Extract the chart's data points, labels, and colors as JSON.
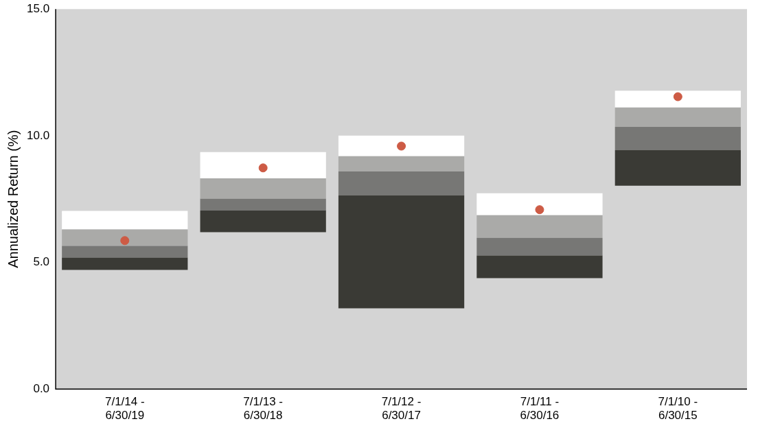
{
  "chart_data": {
    "type": "bar",
    "ylabel": "Annualized Return (%)",
    "categories": [
      "7/1/14 - 6/30/19",
      "7/1/13 - 6/30/18",
      "7/1/12 - 6/30/17",
      "7/1/11 - 6/30/16",
      "7/1/10 - 6/30/15"
    ],
    "stacked": true,
    "series": [
      {
        "color": "#3a3a35",
        "base": [
          4.7,
          6.19,
          3.19,
          4.38,
          8.03
        ],
        "values": [
          0.49,
          0.86,
          4.46,
          0.89,
          1.4
        ]
      },
      {
        "color": "#777775",
        "values": [
          0.46,
          0.46,
          0.94,
          0.7,
          0.92
        ]
      },
      {
        "color": "#aaaaa8",
        "values": [
          0.65,
          0.81,
          0.6,
          0.89,
          0.76
        ]
      },
      {
        "color": "#ffffff",
        "values": [
          0.73,
          1.03,
          0.81,
          0.87,
          0.67
        ]
      },
      {
        "type": "scatter",
        "color": "#cd5b45",
        "x": [
          "7/1/14 - 6/30/19",
          "7/1/13 - 6/30/18",
          "7/1/12 - 6/30/17",
          "7/1/11 - 6/30/16",
          "7/1/10 - 6/30/15"
        ],
        "values": [
          5.86,
          8.73,
          9.59,
          7.08,
          11.54
        ]
      }
    ],
    "marker": "circle",
    "ylim": [
      0,
      15
    ],
    "yticks": [
      {
        "value": 0,
        "label": "0.0"
      },
      {
        "value": 5,
        "label": "5.0"
      },
      {
        "value": 10,
        "label": "10.0"
      },
      {
        "value": 15,
        "label": "15.0"
      }
    ],
    "grid": false,
    "legend": false
  }
}
